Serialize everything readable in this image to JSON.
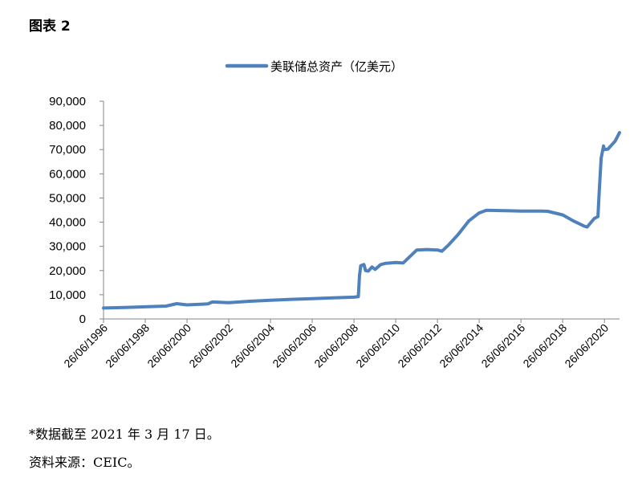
{
  "figure_label": "图表 2",
  "note": "*数据截至 2021 年 3 月 17 日。",
  "source": "资料来源：CEIC。",
  "colors": {
    "line": "#4f81bd",
    "axis": "#868686"
  },
  "chart_data": {
    "type": "line",
    "title": "",
    "xlabel": "",
    "ylabel": "",
    "ylim": [
      0,
      90000
    ],
    "grid": false,
    "legend": "top-center",
    "y_ticks": [
      "90,000",
      "80,000",
      "70,000",
      "60,000",
      "50,000",
      "40,000",
      "30,000",
      "20,000",
      "10,000",
      "0"
    ],
    "x_ticks": [
      "26/06/1996",
      "26/06/1998",
      "26/06/2000",
      "26/06/2002",
      "26/06/2004",
      "26/06/2006",
      "26/06/2008",
      "26/06/2010",
      "26/06/2012",
      "26/06/2014",
      "26/06/2016",
      "26/06/2018",
      "26/06/2020"
    ],
    "series": [
      {
        "name": "美联储总资产（亿美元）",
        "x": [
          "1996-06-26",
          "1997-06-26",
          "1998-06-26",
          "1999-06-26",
          "1999-12-29",
          "2000-06-26",
          "2001-06-26",
          "2001-09-12",
          "2002-06-26",
          "2003-06-26",
          "2004-06-26",
          "2005-06-26",
          "2006-06-26",
          "2007-06-26",
          "2008-06-26",
          "2008-09-10",
          "2008-10-01",
          "2008-10-22",
          "2008-12-17",
          "2009-01-14",
          "2009-03-04",
          "2009-05-06",
          "2009-07-01",
          "2009-10-07",
          "2010-01-06",
          "2010-06-30",
          "2010-11-03",
          "2011-06-29",
          "2011-12-28",
          "2012-06-27",
          "2012-09-12",
          "2013-01-02",
          "2013-06-26",
          "2013-12-25",
          "2014-06-25",
          "2014-10-29",
          "2015-06-24",
          "2016-06-29",
          "2017-06-28",
          "2017-10-04",
          "2018-06-27",
          "2019-01-02",
          "2019-06-26",
          "2019-08-28",
          "2019-12-31",
          "2020-03-04",
          "2020-03-25",
          "2020-04-29",
          "2020-06-10",
          "2020-06-24",
          "2020-08-26",
          "2020-12-30",
          "2021-03-17"
        ],
        "values": [
          4500,
          4700,
          5000,
          5300,
          6300,
          5800,
          6200,
          7000,
          6700,
          7300,
          7700,
          8100,
          8400,
          8700,
          9000,
          9200,
          18000,
          22000,
          22500,
          20000,
          19800,
          21500,
          20500,
          22500,
          23000,
          23300,
          23100,
          28500,
          28700,
          28500,
          28000,
          30500,
          35000,
          40500,
          43800,
          44900,
          44800,
          44600,
          44600,
          44500,
          43000,
          40500,
          38500,
          38000,
          41500,
          42300,
          52000,
          66500,
          71500,
          70000,
          70200,
          73500,
          77000
        ]
      }
    ]
  }
}
